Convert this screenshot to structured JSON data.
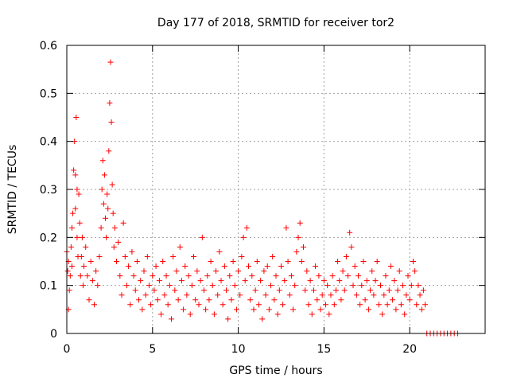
{
  "chart_data": {
    "type": "scatter",
    "title": "Day 177 of 2018, SRMTID for receiver tor2",
    "xlabel": "GPS time / hours",
    "ylabel": "SRMTID / TECUs",
    "xlim": [
      0,
      24.4
    ],
    "ylim": [
      0,
      0.6
    ],
    "xticks": [
      "0",
      "5",
      "10",
      "15",
      "20"
    ],
    "xtick_values": [
      0,
      5,
      10,
      15,
      20
    ],
    "yticks": [
      "0",
      "0.1",
      "0.2",
      "0.3",
      "0.4",
      "0.5",
      "0.6"
    ],
    "ytick_values": [
      0,
      0.1,
      0.2,
      0.3,
      0.4,
      0.5,
      0.6
    ],
    "grid": true,
    "marker": "plus",
    "color": "#ff0000",
    "series": [
      {
        "name": "SRMTID",
        "points": [
          [
            0.0,
            0.17
          ],
          [
            0.05,
            0.13
          ],
          [
            0.1,
            0.05
          ],
          [
            0.1,
            0.15
          ],
          [
            0.15,
            0.09
          ],
          [
            0.2,
            0.12
          ],
          [
            0.25,
            0.18
          ],
          [
            0.3,
            0.22
          ],
          [
            0.3,
            0.14
          ],
          [
            0.35,
            0.25
          ],
          [
            0.4,
            0.34
          ],
          [
            0.45,
            0.4
          ],
          [
            0.5,
            0.33
          ],
          [
            0.5,
            0.26
          ],
          [
            0.55,
            0.45
          ],
          [
            0.6,
            0.3
          ],
          [
            0.6,
            0.2
          ],
          [
            0.65,
            0.16
          ],
          [
            0.7,
            0.29
          ],
          [
            0.75,
            0.23
          ],
          [
            0.8,
            0.12
          ],
          [
            0.85,
            0.16
          ],
          [
            0.9,
            0.2
          ],
          [
            0.95,
            0.1
          ],
          [
            1.0,
            0.14
          ],
          [
            1.1,
            0.18
          ],
          [
            1.2,
            0.12
          ],
          [
            1.3,
            0.07
          ],
          [
            1.4,
            0.15
          ],
          [
            1.5,
            0.11
          ],
          [
            1.6,
            0.06
          ],
          [
            1.7,
            0.13
          ],
          [
            1.8,
            0.1
          ],
          [
            1.9,
            0.16
          ],
          [
            2.0,
            0.22
          ],
          [
            2.05,
            0.3
          ],
          [
            2.1,
            0.36
          ],
          [
            2.15,
            0.27
          ],
          [
            2.2,
            0.33
          ],
          [
            2.25,
            0.24
          ],
          [
            2.3,
            0.2
          ],
          [
            2.35,
            0.29
          ],
          [
            2.4,
            0.26
          ],
          [
            2.45,
            0.38
          ],
          [
            2.5,
            0.48
          ],
          [
            2.55,
            0.565
          ],
          [
            2.6,
            0.44
          ],
          [
            2.65,
            0.31
          ],
          [
            2.7,
            0.25
          ],
          [
            2.75,
            0.18
          ],
          [
            2.8,
            0.22
          ],
          [
            2.9,
            0.15
          ],
          [
            3.0,
            0.19
          ],
          [
            3.1,
            0.12
          ],
          [
            3.2,
            0.08
          ],
          [
            3.3,
            0.23
          ],
          [
            3.4,
            0.16
          ],
          [
            3.5,
            0.1
          ],
          [
            3.6,
            0.14
          ],
          [
            3.7,
            0.06
          ],
          [
            3.8,
            0.17
          ],
          [
            3.9,
            0.12
          ],
          [
            4.0,
            0.09
          ],
          [
            4.1,
            0.15
          ],
          [
            4.2,
            0.07
          ],
          [
            4.3,
            0.11
          ],
          [
            4.4,
            0.05
          ],
          [
            4.5,
            0.13
          ],
          [
            4.6,
            0.08
          ],
          [
            4.7,
            0.16
          ],
          [
            4.8,
            0.1
          ],
          [
            4.9,
            0.06
          ],
          [
            5.0,
            0.12
          ],
          [
            5.1,
            0.09
          ],
          [
            5.2,
            0.14
          ],
          [
            5.3,
            0.07
          ],
          [
            5.4,
            0.11
          ],
          [
            5.5,
            0.04
          ],
          [
            5.6,
            0.15
          ],
          [
            5.7,
            0.08
          ],
          [
            5.8,
            0.12
          ],
          [
            5.9,
            0.06
          ],
          [
            6.0,
            0.1
          ],
          [
            6.1,
            0.03
          ],
          [
            6.2,
            0.16
          ],
          [
            6.3,
            0.09
          ],
          [
            6.4,
            0.13
          ],
          [
            6.5,
            0.07
          ],
          [
            6.6,
            0.18
          ],
          [
            6.7,
            0.11
          ],
          [
            6.8,
            0.05
          ],
          [
            6.9,
            0.14
          ],
          [
            7.0,
            0.08
          ],
          [
            7.1,
            0.12
          ],
          [
            7.2,
            0.04
          ],
          [
            7.3,
            0.1
          ],
          [
            7.4,
            0.16
          ],
          [
            7.5,
            0.07
          ],
          [
            7.6,
            0.13
          ],
          [
            7.7,
            0.06
          ],
          [
            7.8,
            0.11
          ],
          [
            7.9,
            0.2
          ],
          [
            8.0,
            0.09
          ],
          [
            8.1,
            0.05
          ],
          [
            8.2,
            0.12
          ],
          [
            8.3,
            0.07
          ],
          [
            8.4,
            0.15
          ],
          [
            8.5,
            0.1
          ],
          [
            8.6,
            0.04
          ],
          [
            8.7,
            0.13
          ],
          [
            8.8,
            0.08
          ],
          [
            8.9,
            0.17
          ],
          [
            9.0,
            0.11
          ],
          [
            9.1,
            0.06
          ],
          [
            9.2,
            0.14
          ],
          [
            9.3,
            0.09
          ],
          [
            9.4,
            0.03
          ],
          [
            9.5,
            0.12
          ],
          [
            9.6,
            0.07
          ],
          [
            9.7,
            0.15
          ],
          [
            9.8,
            0.1
          ],
          [
            9.9,
            0.05
          ],
          [
            10.0,
            0.13
          ],
          [
            10.1,
            0.08
          ],
          [
            10.2,
            0.16
          ],
          [
            10.3,
            0.2
          ],
          [
            10.4,
            0.11
          ],
          [
            10.5,
            0.22
          ],
          [
            10.6,
            0.14
          ],
          [
            10.7,
            0.07
          ],
          [
            10.8,
            0.12
          ],
          [
            10.9,
            0.05
          ],
          [
            11.0,
            0.09
          ],
          [
            11.1,
            0.15
          ],
          [
            11.2,
            0.06
          ],
          [
            11.3,
            0.11
          ],
          [
            11.4,
            0.03
          ],
          [
            11.5,
            0.13
          ],
          [
            11.6,
            0.08
          ],
          [
            11.7,
            0.14
          ],
          [
            11.8,
            0.05
          ],
          [
            11.9,
            0.1
          ],
          [
            12.0,
            0.16
          ],
          [
            12.1,
            0.07
          ],
          [
            12.2,
            0.12
          ],
          [
            12.3,
            0.04
          ],
          [
            12.4,
            0.09
          ],
          [
            12.5,
            0.14
          ],
          [
            12.6,
            0.06
          ],
          [
            12.7,
            0.11
          ],
          [
            12.8,
            0.22
          ],
          [
            12.9,
            0.15
          ],
          [
            13.0,
            0.08
          ],
          [
            13.1,
            0.12
          ],
          [
            13.2,
            0.05
          ],
          [
            13.3,
            0.1
          ],
          [
            13.4,
            0.17
          ],
          [
            13.5,
            0.2
          ],
          [
            13.6,
            0.23
          ],
          [
            13.7,
            0.15
          ],
          [
            13.8,
            0.18
          ],
          [
            13.9,
            0.09
          ],
          [
            14.0,
            0.13
          ],
          [
            14.1,
            0.06
          ],
          [
            14.2,
            0.11
          ],
          [
            14.3,
            0.04
          ],
          [
            14.4,
            0.09
          ],
          [
            14.5,
            0.14
          ],
          [
            14.6,
            0.07
          ],
          [
            14.7,
            0.12
          ],
          [
            14.8,
            0.05
          ],
          [
            14.9,
            0.08
          ],
          [
            15.0,
            0.11
          ],
          [
            15.1,
            0.06
          ],
          [
            15.2,
            0.1
          ],
          [
            15.3,
            0.04
          ],
          [
            15.4,
            0.08
          ],
          [
            15.5,
            0.12
          ],
          [
            15.6,
            0.06
          ],
          [
            15.7,
            0.09
          ],
          [
            15.8,
            0.15
          ],
          [
            15.9,
            0.11
          ],
          [
            16.0,
            0.07
          ],
          [
            16.1,
            0.13
          ],
          [
            16.2,
            0.09
          ],
          [
            16.3,
            0.16
          ],
          [
            16.4,
            0.12
          ],
          [
            16.5,
            0.21
          ],
          [
            16.6,
            0.18
          ],
          [
            16.7,
            0.1
          ],
          [
            16.8,
            0.14
          ],
          [
            16.9,
            0.08
          ],
          [
            17.0,
            0.12
          ],
          [
            17.1,
            0.06
          ],
          [
            17.2,
            0.1
          ],
          [
            17.3,
            0.15
          ],
          [
            17.4,
            0.07
          ],
          [
            17.5,
            0.11
          ],
          [
            17.6,
            0.05
          ],
          [
            17.7,
            0.09
          ],
          [
            17.8,
            0.13
          ],
          [
            17.9,
            0.08
          ],
          [
            18.0,
            0.11
          ],
          [
            18.1,
            0.15
          ],
          [
            18.2,
            0.06
          ],
          [
            18.3,
            0.1
          ],
          [
            18.4,
            0.04
          ],
          [
            18.5,
            0.08
          ],
          [
            18.6,
            0.12
          ],
          [
            18.7,
            0.06
          ],
          [
            18.8,
            0.09
          ],
          [
            18.9,
            0.14
          ],
          [
            19.0,
            0.07
          ],
          [
            19.1,
            0.11
          ],
          [
            19.2,
            0.05
          ],
          [
            19.3,
            0.09
          ],
          [
            19.4,
            0.13
          ],
          [
            19.5,
            0.06
          ],
          [
            19.6,
            0.1
          ],
          [
            19.7,
            0.04
          ],
          [
            19.8,
            0.08
          ],
          [
            19.9,
            0.12
          ],
          [
            20.0,
            0.07
          ],
          [
            20.1,
            0.1
          ],
          [
            20.2,
            0.15
          ],
          [
            20.3,
            0.13
          ],
          [
            20.4,
            0.06
          ],
          [
            20.5,
            0.1
          ],
          [
            20.6,
            0.08
          ],
          [
            20.7,
            0.05
          ],
          [
            20.8,
            0.09
          ],
          [
            20.9,
            0.06
          ],
          [
            21.0,
            0.0
          ],
          [
            21.2,
            0.0
          ],
          [
            21.4,
            0.0
          ],
          [
            21.6,
            0.0
          ],
          [
            21.8,
            0.0
          ],
          [
            22.0,
            0.0
          ],
          [
            22.2,
            0.0
          ],
          [
            22.4,
            0.0
          ],
          [
            22.6,
            0.0
          ],
          [
            22.8,
            0.0
          ]
        ]
      }
    ]
  }
}
